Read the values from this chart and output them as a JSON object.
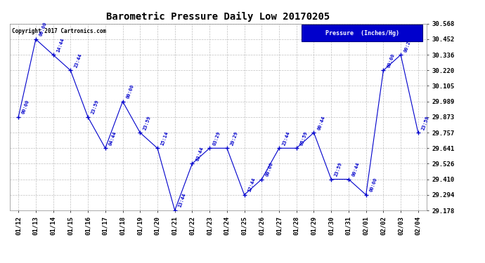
{
  "title": "Barometric Pressure Daily Low 20170205",
  "copyright_text": "Copyright 2017 Cartronics.com",
  "background_color": "#ffffff",
  "line_color": "#0000cc",
  "text_color": "#0000cc",
  "grid_color": "#b0b0b0",
  "ylim": [
    29.178,
    30.568
  ],
  "yticks": [
    29.178,
    29.294,
    29.41,
    29.526,
    29.641,
    29.757,
    29.873,
    29.989,
    30.105,
    30.22,
    30.336,
    30.452,
    30.568
  ],
  "dates": [
    "01/12",
    "01/13",
    "01/14",
    "01/15",
    "01/16",
    "01/17",
    "01/18",
    "01/19",
    "01/20",
    "01/21",
    "01/22",
    "01/23",
    "01/24",
    "01/25",
    "01/26",
    "01/27",
    "01/28",
    "01/29",
    "01/30",
    "01/31",
    "02/01",
    "02/02",
    "02/03",
    "02/04"
  ],
  "values": [
    29.873,
    30.452,
    30.336,
    30.22,
    29.873,
    29.641,
    29.989,
    29.757,
    29.641,
    29.178,
    29.526,
    29.641,
    29.641,
    29.294,
    29.41,
    29.641,
    29.641,
    29.757,
    29.41,
    29.41,
    29.294,
    30.22,
    30.336,
    29.757
  ],
  "time_labels": [
    "00:00",
    "00:00",
    "14:44",
    "23:44",
    "23:59",
    "04:44",
    "00:00",
    "23:59",
    "15:14",
    "13:44",
    "03:44",
    "03:29",
    "20:29",
    "12:44",
    "00:00",
    "23:44",
    "05:59",
    "00:44",
    "23:59",
    "00:44",
    "00:00",
    "00:00",
    "00:29",
    "23:59"
  ],
  "legend_label": "Pressure  (Inches/Hg)",
  "legend_bg": "#0000cc",
  "legend_text_color": "#ffffff"
}
